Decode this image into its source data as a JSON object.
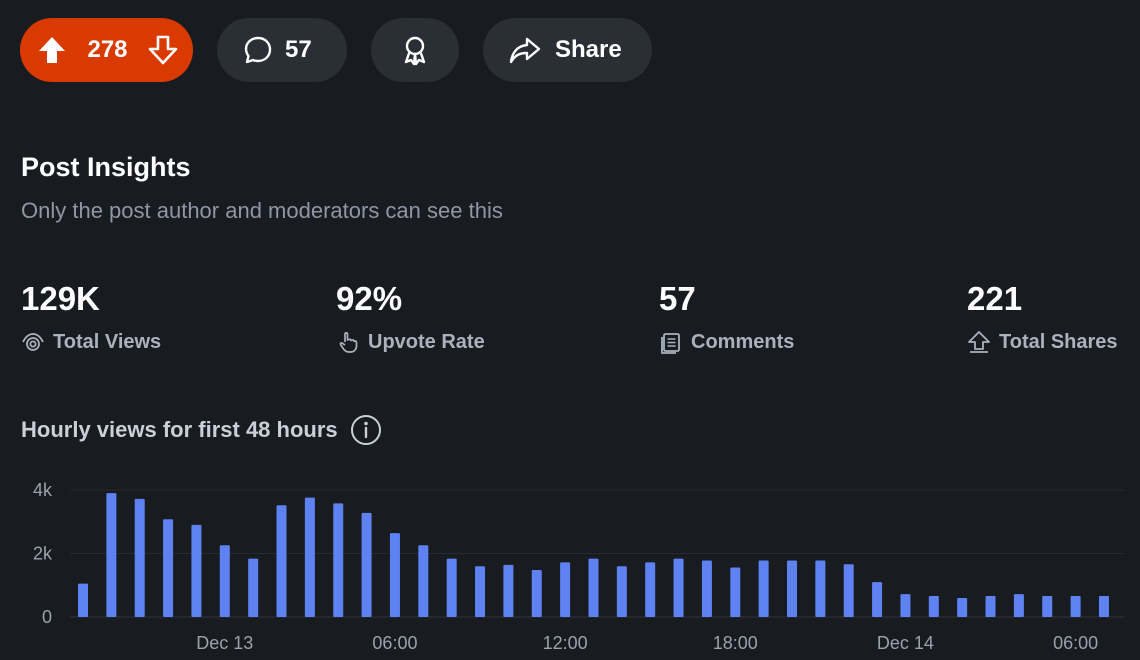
{
  "actions": {
    "vote_count": "278",
    "comment_count": "57",
    "share_label": "Share"
  },
  "insights": {
    "title": "Post Insights",
    "subtitle": "Only the post author and moderators can see this"
  },
  "stats": [
    {
      "value": "129K",
      "label": "Total Views",
      "icon": "eye-icon"
    },
    {
      "value": "92%",
      "label": "Upvote Rate",
      "icon": "hand-pointer-icon"
    },
    {
      "value": "57",
      "label": "Comments",
      "icon": "comments-doc-icon"
    },
    {
      "value": "221",
      "label": "Total Shares",
      "icon": "share-arrow-icon"
    }
  ],
  "colors": {
    "background": "#181b20",
    "upvote": "#d93a00",
    "pill": "#2a2e35",
    "bar": "#5e82f2"
  },
  "chart_data": {
    "type": "bar",
    "title": "Hourly views for first 48 hours",
    "ylim": [
      0,
      4000
    ],
    "yticks": [
      {
        "value": 0,
        "label": "0"
      },
      {
        "value": 2000,
        "label": "2k"
      },
      {
        "value": 4000,
        "label": "4k"
      }
    ],
    "xticks": [
      {
        "index": 5,
        "label": "Dec 13"
      },
      {
        "index": 11,
        "label": "06:00"
      },
      {
        "index": 17,
        "label": "12:00"
      },
      {
        "index": 23,
        "label": "18:00"
      },
      {
        "index": 29,
        "label": "Dec 14"
      },
      {
        "index": 35,
        "label": "06:00"
      }
    ],
    "grid": true,
    "values": [
      1050,
      3900,
      3720,
      3080,
      2900,
      2260,
      1840,
      3520,
      3760,
      3580,
      3280,
      2640,
      2260,
      1840,
      1600,
      1640,
      1480,
      1720,
      1840,
      1600,
      1720,
      1840,
      1780,
      1560,
      1780,
      1780,
      1780,
      1660,
      1100,
      720,
      660,
      600,
      660,
      720,
      660,
      660,
      660
    ]
  }
}
